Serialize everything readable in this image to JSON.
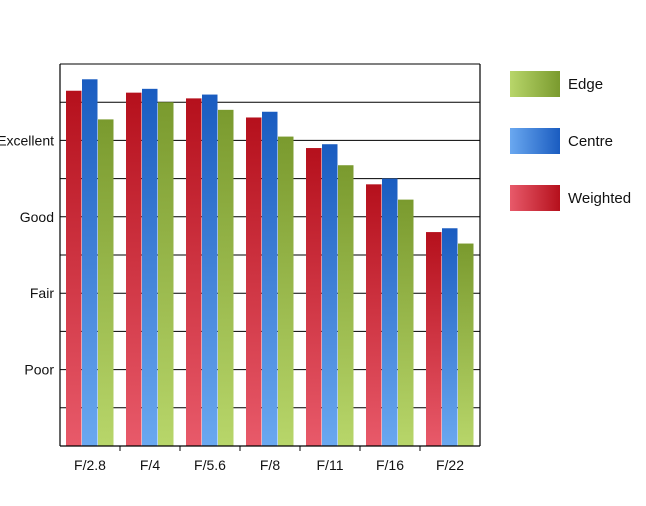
{
  "chart_data": {
    "type": "bar",
    "categories": [
      "F/2.8",
      "F/4",
      "F/5.6",
      "F/8",
      "F/11",
      "F/16",
      "F/22"
    ],
    "series": [
      {
        "name": "Weighted",
        "values": [
          9.3,
          9.25,
          9.1,
          8.6,
          7.8,
          6.85,
          5.6
        ]
      },
      {
        "name": "Centre",
        "values": [
          9.6,
          9.35,
          9.2,
          8.75,
          7.9,
          7.0,
          5.7
        ]
      },
      {
        "name": "Edge",
        "values": [
          8.55,
          9.0,
          8.8,
          8.1,
          7.35,
          6.45,
          5.3
        ]
      }
    ],
    "y_tick_labels": [
      {
        "value": 8,
        "label": "Excellent"
      },
      {
        "value": 6,
        "label": "Good"
      },
      {
        "value": 4,
        "label": "Fair"
      },
      {
        "value": 2,
        "label": "Poor"
      }
    ],
    "ylim": [
      0,
      10
    ],
    "gridline_step": 1,
    "grid": true,
    "legend": {
      "placement": "right",
      "items": [
        "Edge",
        "Centre",
        "Weighted"
      ]
    },
    "colors": {
      "Weighted": {
        "dark": "#b5101c",
        "light": "#e85a6a"
      },
      "Centre": {
        "dark": "#1a5cc0",
        "light": "#6aa8f0"
      },
      "Edge": {
        "dark": "#7a9a2e",
        "light": "#b8d66a"
      }
    },
    "title": "",
    "xlabel": "",
    "ylabel": ""
  }
}
